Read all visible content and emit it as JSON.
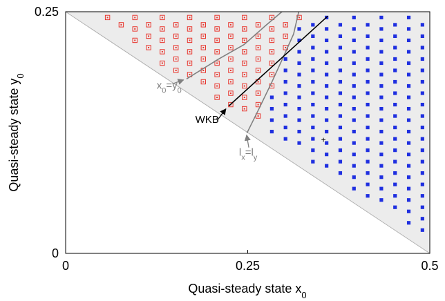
{
  "chart_data": {
    "type": "scatter",
    "title": "",
    "xlabel": {
      "main": "Quasi-steady state x",
      "sub": "0"
    },
    "ylabel": {
      "main": "Quasi-steady state y",
      "sub": "0"
    },
    "xlim": [
      0,
      0.5
    ],
    "ylim": [
      0,
      0.25
    ],
    "xticks": [
      {
        "value": 0,
        "label": "0"
      },
      {
        "value": 0.25,
        "label": "0.25"
      },
      {
        "value": 0.5,
        "label": "0.5"
      }
    ],
    "yticks": [
      {
        "value": 0,
        "label": "0"
      },
      {
        "value": 0.25,
        "label": "0.25"
      }
    ],
    "grid": false,
    "shaded_region": {
      "description": "region above the line x0 + 2*y0 = 0.5",
      "color": "#ececec",
      "vertices": [
        [
          0,
          0.25
        ],
        [
          0.5,
          0.25
        ],
        [
          0.5,
          0
        ]
      ]
    },
    "lattice": {
      "x_start": 0.0575,
      "dx": 0.0188,
      "y_odd": 0.244,
      "y_even": 0.2365,
      "dy": 0.0118,
      "y_min_margin": 0.013,
      "x_max": 0.49,
      "y_min": 0.015
    },
    "curves": [
      {
        "name": "x0=y0",
        "color": "#808080",
        "points": [
          [
            0.166,
            0.1805
          ],
          [
            0.21,
            0.201
          ],
          [
            0.245,
            0.216
          ],
          [
            0.275,
            0.236
          ],
          [
            0.297,
            0.25
          ]
        ]
      },
      {
        "name": "lx=ly",
        "color": "#808080",
        "points": [
          [
            0.249,
            0.1245
          ],
          [
            0.266,
            0.1505
          ],
          [
            0.283,
            0.177
          ],
          [
            0.3,
            0.205
          ],
          [
            0.313,
            0.227
          ],
          [
            0.32,
            0.25
          ]
        ]
      },
      {
        "name": "WKB",
        "color": "#000000",
        "points": [
          [
            0.224,
            0.1525
          ],
          [
            0.36,
            0.2455
          ]
        ]
      }
    ],
    "special_point": {
      "x": 0.354,
      "y": 0.1175,
      "symbol": "+"
    },
    "annotations": [
      {
        "id": "x0y0",
        "color": "#808080",
        "parts": [
          {
            "t": "x"
          },
          {
            "t": "0",
            "sub": true
          },
          {
            "t": "=y"
          },
          {
            "t": "0",
            "sub": true
          }
        ],
        "text_x": 0.125,
        "text_y": 0.1705,
        "arrow_from": [
          0.147,
          0.1755
        ],
        "arrow_to": [
          0.162,
          0.1795
        ]
      },
      {
        "id": "wkb",
        "color": "#000000",
        "parts": [
          {
            "t": "WKB"
          }
        ],
        "text_x": 0.178,
        "text_y": 0.135,
        "arrow_from": [
          0.208,
          0.1375
        ],
        "arrow_to": [
          0.22,
          0.1495
        ]
      },
      {
        "id": "lxly",
        "color": "#808080",
        "parts": [
          {
            "t": "l"
          },
          {
            "t": "x",
            "sub": true
          },
          {
            "t": "=l"
          },
          {
            "t": "y",
            "sub": true
          }
        ],
        "text_x": 0.238,
        "text_y": 0.101,
        "arrow_from": [
          0.2515,
          0.1095
        ],
        "arrow_to": [
          0.2485,
          0.1225
        ]
      }
    ],
    "colors": {
      "red_marker": "#e8352d",
      "blue_marker": "#1f2fe0",
      "shade": "#ececec",
      "diagonal": "#b0b0b0"
    }
  }
}
